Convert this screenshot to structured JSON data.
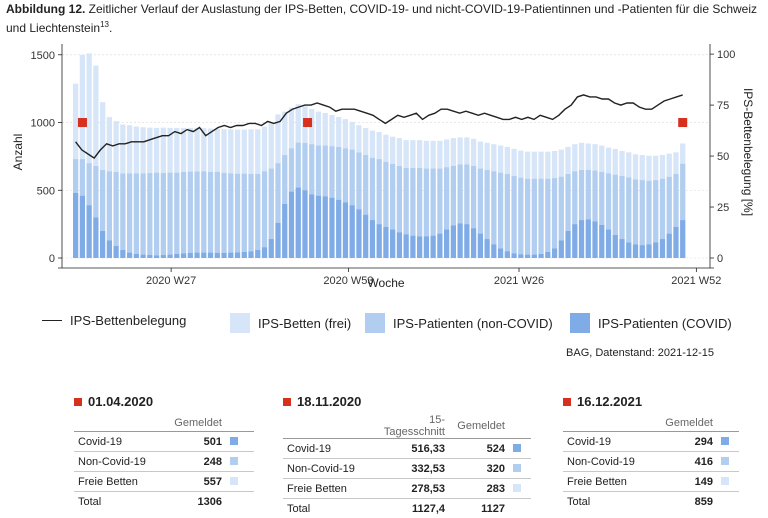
{
  "caption": {
    "prefix": "Abbildung 12.",
    "text": " Zeitlicher Verlauf der Auslastung der IPS-Betten, COVID-19- und nicht-COVID-19-Patientinnen und -Patienten für die Schweiz und Liechtenstein",
    "footnote": "13",
    "end": "."
  },
  "colors": {
    "frei": "#d6e5f7",
    "noncovid": "#b1cdef",
    "covid": "#7fabe6",
    "line": "#222222",
    "marker": "#d7301f"
  },
  "chart_data": {
    "type": "bar",
    "xlabel": "Woche",
    "ylabel": "Anzahl",
    "y2label": "IPS-Bettenbelegung [%]",
    "ylim": [
      0,
      1550
    ],
    "y2lim": [
      0,
      103
    ],
    "yticks": [
      0,
      500,
      1000,
      1500
    ],
    "y2ticks": [
      0,
      25,
      50,
      75,
      100
    ],
    "xtick_labels": [
      "2020 W27",
      "2020 W53",
      "2021 W26",
      "2021 W52"
    ],
    "xtick_weeks": [
      25,
      51,
      76,
      102
    ],
    "bars_start_week": 11,
    "bars_end_week": 100,
    "series": [
      {
        "name": "IPS-Patienten (COVID)",
        "values": [
          480,
          460,
          390,
          300,
          200,
          130,
          90,
          60,
          40,
          30,
          25,
          22,
          20,
          22,
          25,
          30,
          35,
          38,
          40,
          40,
          40,
          38,
          38,
          40,
          42,
          45,
          50,
          60,
          80,
          140,
          260,
          400,
          490,
          520,
          500,
          470,
          460,
          455,
          445,
          430,
          410,
          390,
          360,
          320,
          280,
          250,
          230,
          210,
          190,
          175,
          165,
          160,
          160,
          165,
          180,
          210,
          240,
          255,
          250,
          220,
          180,
          140,
          100,
          70,
          50,
          35,
          28,
          25,
          25,
          30,
          45,
          70,
          130,
          200,
          250,
          280,
          285,
          270,
          245,
          210,
          170,
          140,
          115,
          100,
          95,
          100,
          115,
          140,
          180,
          230,
          280
        ]
      },
      {
        "name": "IPS-Patienten (non-COVID)",
        "values": [
          250,
          270,
          310,
          380,
          450,
          510,
          545,
          565,
          585,
          595,
          600,
          605,
          610,
          605,
          605,
          600,
          600,
          600,
          598,
          600,
          595,
          598,
          590,
          585,
          580,
          578,
          570,
          560,
          560,
          520,
          440,
          360,
          320,
          332,
          350,
          370,
          370,
          375,
          380,
          390,
          400,
          410,
          420,
          440,
          460,
          480,
          480,
          485,
          490,
          490,
          500,
          505,
          500,
          495,
          480,
          460,
          440,
          435,
          440,
          460,
          480,
          510,
          540,
          560,
          570,
          570,
          565,
          560,
          560,
          555,
          540,
          520,
          470,
          420,
          390,
          370,
          365,
          375,
          390,
          415,
          445,
          465,
          480,
          480,
          480,
          470,
          460,
          445,
          420,
          390,
          416
        ]
      },
      {
        "name": "IPS-Betten (frei)",
        "values": [
          557,
          770,
          810,
          740,
          500,
          400,
          375,
          360,
          355,
          345,
          340,
          335,
          330,
          335,
          330,
          330,
          325,
          322,
          320,
          318,
          320,
          318,
          322,
          325,
          325,
          325,
          330,
          330,
          330,
          340,
          360,
          320,
          300,
          283,
          270,
          260,
          250,
          240,
          230,
          220,
          215,
          205,
          200,
          200,
          200,
          200,
          200,
          200,
          205,
          205,
          205,
          205,
          205,
          205,
          205,
          205,
          205,
          200,
          200,
          200,
          200,
          200,
          200,
          200,
          200,
          200,
          200,
          200,
          200,
          200,
          200,
          200,
          200,
          200,
          200,
          200,
          195,
          195,
          195,
          190,
          190,
          185,
          185,
          185,
          185,
          185,
          180,
          175,
          170,
          160,
          149
        ]
      },
      {
        "name": "IPS-Bettenbelegung",
        "axis": "right",
        "values": [
          57,
          53,
          51,
          49,
          53,
          56,
          55,
          56,
          56,
          57,
          57,
          57,
          58,
          59,
          60,
          60,
          62,
          61,
          63,
          62,
          64,
          60,
          62,
          64,
          65,
          64,
          65,
          65,
          66,
          66,
          65,
          67,
          66,
          67,
          71,
          73,
          74,
          75,
          75,
          76,
          75,
          74,
          72,
          73,
          73,
          73,
          72,
          71,
          70,
          68,
          66,
          68,
          70,
          69,
          70,
          71,
          68,
          70,
          71,
          73,
          73,
          72,
          71,
          72,
          71,
          70,
          71,
          70,
          69,
          68,
          68,
          69,
          68,
          69,
          68,
          70,
          69,
          68,
          70,
          73,
          75,
          79,
          80,
          79,
          79,
          78,
          78,
          76,
          75,
          76,
          76,
          74,
          73,
          73,
          75,
          77,
          78,
          79,
          80
        ]
      }
    ],
    "markers": [
      {
        "week": 12,
        "value": 1000
      },
      {
        "week": 45,
        "value": 1000
      },
      {
        "week": 100,
        "value": 1000
      }
    ]
  },
  "legend": {
    "line": "IPS-Bettenbelegung",
    "frei": "IPS-Betten (frei)",
    "noncovid": "IPS-Patienten (non-COVID)",
    "covid": "IPS-Patienten (COVID)"
  },
  "source": "BAG, Datenstand: 2021-12-15",
  "boxes": {
    "b1": {
      "date": "01.04.2020",
      "col1": "Gemeldet",
      "rows": [
        {
          "label": "Covid-19",
          "value": "501"
        },
        {
          "label": "Non-Covid-19",
          "value": "248"
        },
        {
          "label": "Freie Betten",
          "value": "557"
        }
      ],
      "total_label": "Total",
      "total": "1306"
    },
    "b2": {
      "date": "18.11.2020",
      "col1": "15-Tagesschnitt",
      "col2": "Gemeldet",
      "rows": [
        {
          "label": "Covid-19",
          "avg": "516,33",
          "value": "524"
        },
        {
          "label": "Non-Covid-19",
          "avg": "332,53",
          "value": "320"
        },
        {
          "label": "Freie Betten",
          "avg": "278,53",
          "value": "283"
        }
      ],
      "total_label": "Total",
      "total_avg": "1127,4",
      "total": "1127"
    },
    "b3": {
      "date": "16.12.2021",
      "col1": "Gemeldet",
      "rows": [
        {
          "label": "Covid-19",
          "value": "294"
        },
        {
          "label": "Non-Covid-19",
          "value": "416"
        },
        {
          "label": "Freie Betten",
          "value": "149"
        }
      ],
      "total_label": "Total",
      "total": "859"
    }
  }
}
